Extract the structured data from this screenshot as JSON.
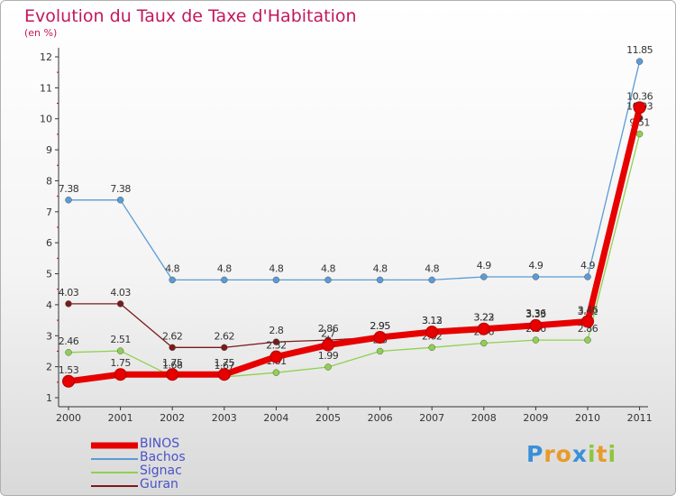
{
  "chart_data": {
    "type": "line",
    "title": "Evolution du Taux de Taxe d'Habitation",
    "ylabel": "(en %)",
    "x": [
      "2000",
      "2001",
      "2002",
      "2003",
      "2004",
      "2005",
      "2006",
      "2007",
      "2008",
      "2009",
      "2010",
      "2011"
    ],
    "ylim": [
      1,
      12
    ],
    "yticks": [
      1,
      2,
      3,
      4,
      5,
      6,
      7,
      8,
      9,
      10,
      11,
      12
    ],
    "grid": false,
    "legend_position": "bottom-left",
    "series": [
      {
        "name": "Bachos",
        "color": "#5b9bd5",
        "values": [
          7.38,
          7.38,
          4.8,
          4.8,
          4.8,
          4.8,
          4.8,
          4.8,
          4.9,
          4.9,
          4.9,
          11.85
        ],
        "labels": [
          "7.38",
          "7.38",
          "4.8",
          "4.8",
          "4.8",
          "4.8",
          "4.8",
          "4.8",
          "4.9",
          "4.9",
          "4.9",
          "11.85"
        ]
      },
      {
        "name": "Guran",
        "color": "#7a1a1a",
        "values": [
          4.03,
          4.03,
          2.62,
          2.62,
          2.8,
          2.86,
          2.95,
          3.13,
          3.23,
          3.36,
          3.42,
          10.03
        ],
        "labels": [
          "4.03",
          "4.03",
          "2.62",
          "2.62",
          "2.8",
          "2.86",
          "2.95",
          "3.13",
          "3.23",
          "3.36",
          "3.42",
          "10.03"
        ]
      },
      {
        "name": "Signac",
        "color": "#8fd14f",
        "values": [
          2.46,
          2.51,
          1.68,
          1.67,
          1.81,
          1.99,
          2.5,
          2.62,
          2.76,
          2.86,
          2.86,
          9.51
        ],
        "labels": [
          "2.46",
          "2.51",
          "1.68",
          "1.67",
          "1.81",
          "1.99",
          "2.5",
          "2.62",
          "2.76",
          "2.86",
          "2.86",
          "9.51"
        ]
      },
      {
        "name": "BINOS",
        "color": "#e60000",
        "values": [
          1.53,
          1.75,
          1.75,
          1.75,
          2.32,
          2.7,
          2.95,
          3.12,
          3.22,
          3.33,
          3.46,
          10.36
        ],
        "labels": [
          "1.53",
          "1.75",
          "1.75",
          "1.75",
          "2.32",
          "2.7",
          "2.95",
          "3.12",
          "3.22",
          "3.33",
          "3.46",
          "10.36"
        ]
      }
    ],
    "legend_order": [
      "BINOS",
      "Bachos",
      "Signac",
      "Guran"
    ]
  },
  "logo": {
    "letters": [
      "P",
      "r",
      "o",
      "x",
      "i",
      "t",
      "i"
    ],
    "colors": [
      "#3a8fd8",
      "#e89a2a",
      "#e89a2a",
      "#3a8fd8",
      "#8dc63f",
      "#e89a2a",
      "#8dc63f"
    ]
  }
}
